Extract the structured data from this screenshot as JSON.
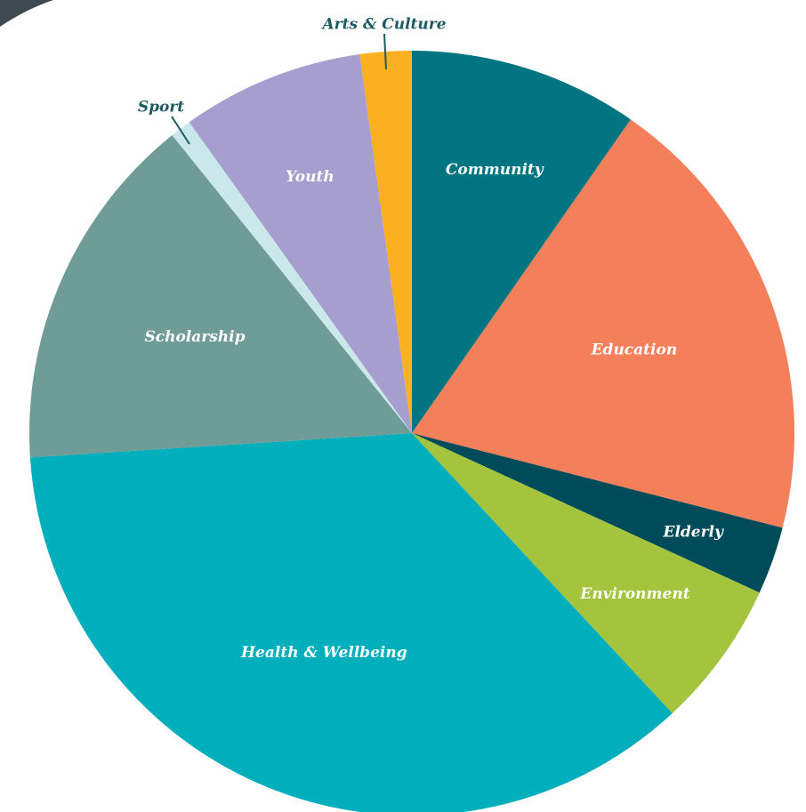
{
  "chart_data": {
    "type": "pie",
    "start_angle_deg": 0,
    "direction": "clockwise",
    "slices": [
      {
        "label": "Community",
        "value": 9.8,
        "color": "#007582",
        "label_color": "#ffffff"
      },
      {
        "label": "Education",
        "value": 19.5,
        "color": "#f3805b",
        "label_color": "#ffffff"
      },
      {
        "label": "Elderly",
        "value": 2.9,
        "color": "#004b5a",
        "label_color": "#ffffff"
      },
      {
        "label": "Environment",
        "value": 6.3,
        "color": "#a3c43c",
        "label_color": "#ffffff"
      },
      {
        "label": "Health & Wellbeing",
        "value": 36.3,
        "color": "#00aebc",
        "label_color": "#ffffff"
      },
      {
        "label": "Scholarship",
        "value": 15.4,
        "color": "#6f9c97",
        "label_color": "#ffffff"
      },
      {
        "label": "Sport",
        "value": 0.9,
        "color": "#cae8ea",
        "label_color": "#1e5a63"
      },
      {
        "label": "Youth",
        "value": 7.8,
        "color": "#a59ecf",
        "label_color": "#ffffff"
      },
      {
        "label": "Arts & Culture",
        "value": 2.2,
        "color": "#fbb020",
        "label_color": "#1e5a63"
      }
    ]
  }
}
